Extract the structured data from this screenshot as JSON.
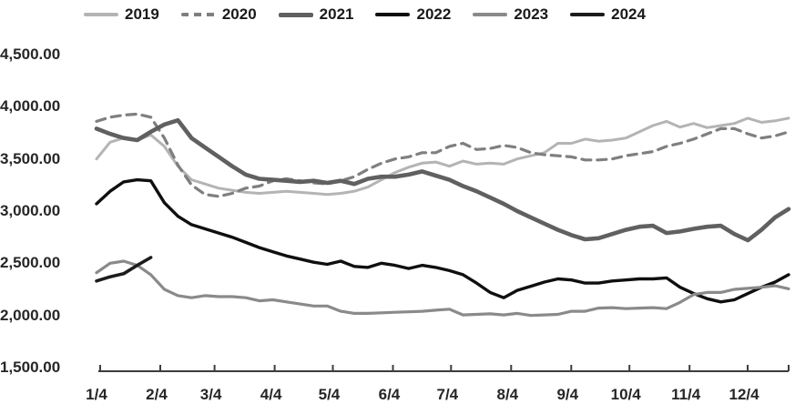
{
  "chart_data": {
    "type": "line",
    "title": "",
    "xlabel": "",
    "ylabel": "",
    "grid": false,
    "legend_position": "top",
    "y_axis": {
      "min": 1500,
      "max": 4500,
      "step": 500,
      "tick_labels": [
        "4,500.00",
        "4,000.00",
        "3,500.00",
        "3,000.00",
        "2,500.00",
        "2,000.00",
        "1,500.00"
      ]
    },
    "x_axis": {
      "tick_labels": [
        "1/4",
        "2/4",
        "3/4",
        "4/4",
        "5/4",
        "6/4",
        "7/4",
        "8/4",
        "9/4",
        "10/4",
        "11/4",
        "12/4"
      ],
      "sampling": "weekly, first point at 1/4",
      "label_days_of_year": [
        4,
        35,
        63,
        94,
        124,
        155,
        185,
        216,
        247,
        277,
        308,
        338
      ]
    },
    "series": [
      {
        "name": "2019",
        "color": "#b4b4b4",
        "style": "solid",
        "stroke_width": 3,
        "values": [
          3500,
          3660,
          3700,
          3680,
          3730,
          3620,
          3430,
          3300,
          3260,
          3220,
          3200,
          3180,
          3170,
          3180,
          3190,
          3180,
          3170,
          3160,
          3170,
          3190,
          3230,
          3300,
          3370,
          3420,
          3460,
          3470,
          3430,
          3480,
          3450,
          3460,
          3450,
          3500,
          3530,
          3560,
          3650,
          3650,
          3690,
          3670,
          3680,
          3700,
          3760,
          3820,
          3860,
          3805,
          3840,
          3800,
          3820,
          3840,
          3890,
          3850,
          3865,
          3890
        ]
      },
      {
        "name": "2020",
        "color": "#7f7f7f",
        "style": "dashed",
        "stroke_width": 3.2,
        "values": [
          3860,
          3900,
          3920,
          3930,
          3900,
          3700,
          3440,
          3250,
          3160,
          3140,
          3170,
          3220,
          3240,
          3290,
          3310,
          3290,
          3270,
          3260,
          3290,
          3330,
          3400,
          3460,
          3500,
          3520,
          3560,
          3560,
          3620,
          3650,
          3590,
          3600,
          3630,
          3610,
          3560,
          3540,
          3530,
          3520,
          3490,
          3490,
          3500,
          3530,
          3550,
          3570,
          3620,
          3650,
          3690,
          3740,
          3790,
          3790,
          3740,
          3700,
          3720,
          3760
        ]
      },
      {
        "name": "2021",
        "color": "#606060",
        "style": "solid",
        "stroke_width": 4.6,
        "values": [
          3790,
          3740,
          3700,
          3680,
          3760,
          3830,
          3870,
          3700,
          3610,
          3520,
          3430,
          3350,
          3310,
          3300,
          3290,
          3280,
          3290,
          3270,
          3290,
          3260,
          3310,
          3330,
          3330,
          3350,
          3380,
          3340,
          3300,
          3240,
          3190,
          3130,
          3070,
          3000,
          2940,
          2880,
          2820,
          2770,
          2730,
          2740,
          2780,
          2820,
          2850,
          2860,
          2790,
          2805,
          2830,
          2850,
          2860,
          2780,
          2720,
          2820,
          2940,
          3020
        ]
      },
      {
        "name": "2022",
        "color": "#0f0f0f",
        "style": "solid",
        "stroke_width": 3.4,
        "values": [
          3070,
          3190,
          3280,
          3300,
          3290,
          3080,
          2950,
          2870,
          2830,
          2790,
          2750,
          2700,
          2650,
          2610,
          2570,
          2540,
          2510,
          2490,
          2520,
          2470,
          2460,
          2500,
          2480,
          2450,
          2480,
          2460,
          2430,
          2390,
          2310,
          2220,
          2170,
          2240,
          2280,
          2320,
          2350,
          2340,
          2310,
          2310,
          2330,
          2340,
          2350,
          2350,
          2360,
          2270,
          2210,
          2160,
          2130,
          2150,
          2210,
          2270,
          2320,
          2390
        ]
      },
      {
        "name": "2023",
        "color": "#8a8a8a",
        "style": "solid",
        "stroke_width": 3.2,
        "values": [
          2410,
          2500,
          2520,
          2480,
          2390,
          2250,
          2190,
          2170,
          2190,
          2180,
          2180,
          2170,
          2140,
          2150,
          2130,
          2110,
          2090,
          2090,
          2040,
          2020,
          2020,
          2025,
          2030,
          2035,
          2040,
          2050,
          2060,
          2005,
          2010,
          2015,
          2005,
          2020,
          2000,
          2005,
          2010,
          2040,
          2040,
          2070,
          2075,
          2065,
          2070,
          2075,
          2065,
          2125,
          2200,
          2220,
          2220,
          2250,
          2260,
          2270,
          2285,
          2255
        ]
      },
      {
        "name": "2024",
        "color": "#1c1c1c",
        "style": "solid",
        "stroke_width": 3.6,
        "values": [
          2330,
          2370,
          2400,
          2480,
          2555
        ]
      }
    ]
  }
}
